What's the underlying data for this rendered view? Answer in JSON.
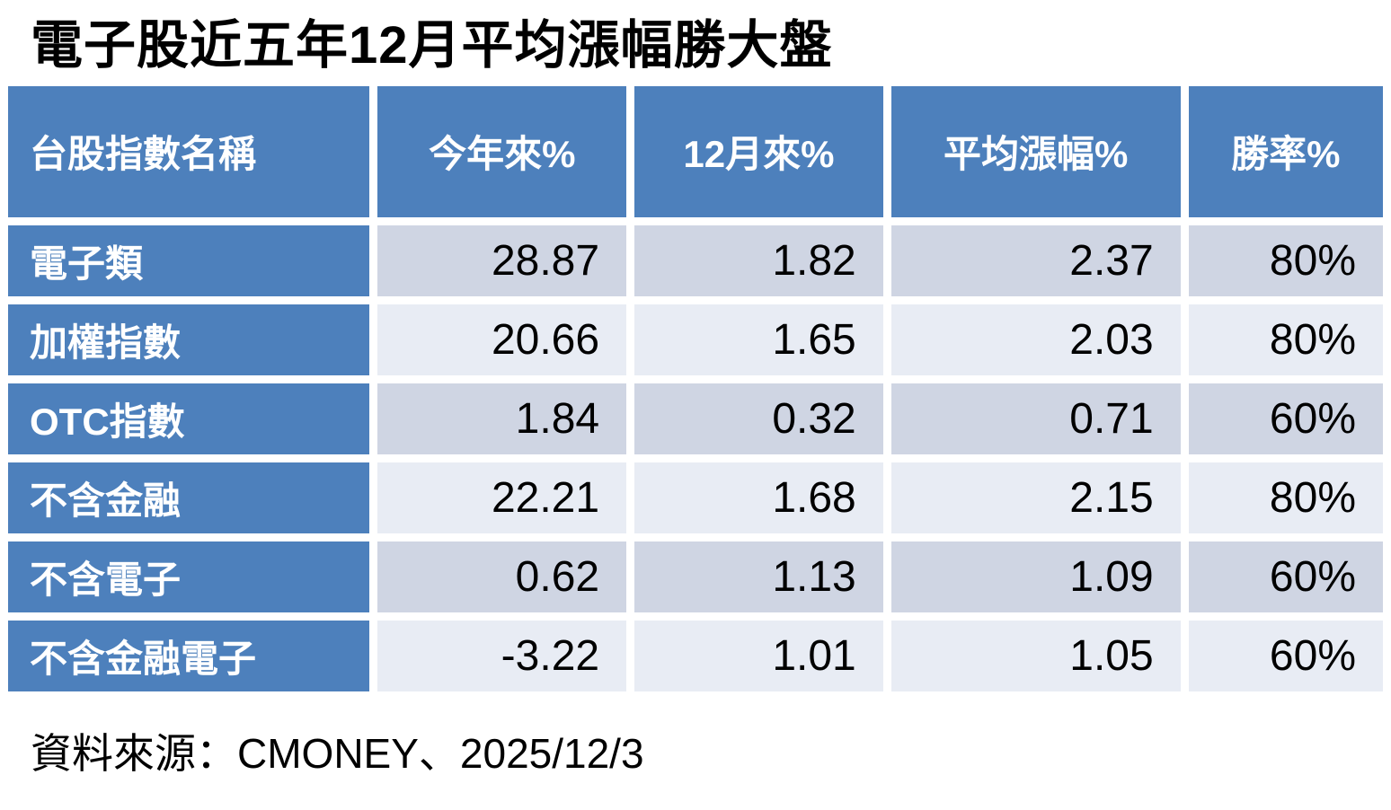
{
  "title": "電子股近五年12月平均漲幅勝大盤",
  "source_note": "資料來源：CMONEY、2025/12/3",
  "colors": {
    "header_bg": "#4D80BC",
    "row_label_bg": "#4D80BC",
    "band_dark": "#CFD5E3",
    "band_light": "#E8ECF4",
    "header_text": "#FFFFFF",
    "value_text": "#000000",
    "gap": "#FFFFFF"
  },
  "chart_data": {
    "type": "table",
    "title": "電子股近五年12月平均漲幅勝大盤",
    "columns": [
      "台股指數名稱",
      "今年來%",
      "12月來%",
      "平均漲幅%",
      "勝率%"
    ],
    "rows": [
      [
        "電子類",
        "28.87",
        "1.82",
        "2.37",
        "80%"
      ],
      [
        "加權指數",
        "20.66",
        "1.65",
        "2.03",
        "80%"
      ],
      [
        "OTC指數",
        "1.84",
        "0.32",
        "0.71",
        "60%"
      ],
      [
        "不含金融",
        "22.21",
        "1.68",
        "2.15",
        "80%"
      ],
      [
        "不含電子",
        "0.62",
        "1.13",
        "1.09",
        "60%"
      ],
      [
        "不含金融電子",
        "-3.22",
        "1.01",
        "1.05",
        "60%"
      ]
    ],
    "numeric_series": [
      {
        "name": "今年來%",
        "values": [
          28.87,
          20.66,
          1.84,
          22.21,
          0.62,
          -3.22
        ]
      },
      {
        "name": "12月來%",
        "values": [
          1.82,
          1.65,
          0.32,
          1.68,
          1.13,
          1.01
        ]
      },
      {
        "name": "平均漲幅%",
        "values": [
          2.37,
          2.03,
          0.71,
          2.15,
          1.09,
          1.05
        ]
      },
      {
        "name": "勝率%",
        "values": [
          80,
          80,
          60,
          80,
          60,
          60
        ]
      }
    ],
    "source": "資料來源：CMONEY、2025/12/3"
  }
}
